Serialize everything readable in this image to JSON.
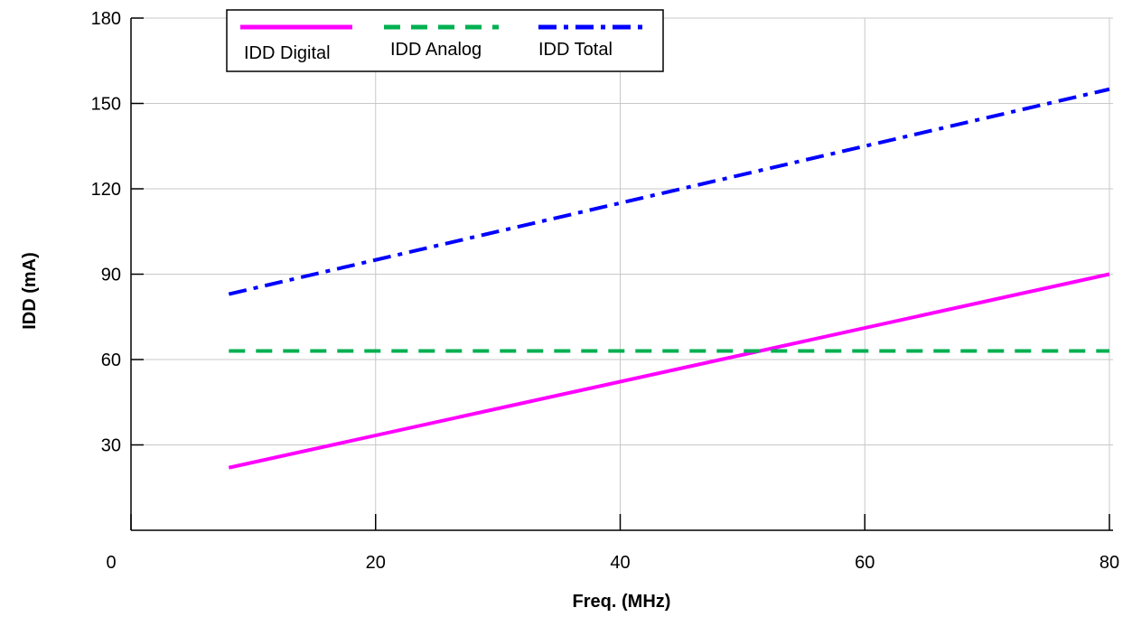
{
  "chart_data": {
    "type": "line",
    "xlabel": "Freq. (MHz)",
    "ylabel": "IDD (mA)",
    "xlim": [
      0,
      80
    ],
    "ylim": [
      0,
      180
    ],
    "xticks": [
      0,
      20,
      40,
      60,
      80
    ],
    "yticks": [
      30,
      60,
      90,
      120,
      150,
      180
    ],
    "grid": true,
    "legend_position": "top-left",
    "series": [
      {
        "name": "IDD Digital",
        "color": "#ff00ff",
        "style": "solid",
        "x": [
          8,
          80
        ],
        "y": [
          22,
          90
        ]
      },
      {
        "name": "IDD Analog",
        "color": "#00b050",
        "style": "dashed",
        "x": [
          8,
          80
        ],
        "y": [
          63,
          63
        ]
      },
      {
        "name": "IDD Total",
        "color": "#0000ff",
        "style": "dash-dot",
        "x": [
          8,
          80
        ],
        "y": [
          83,
          155
        ]
      }
    ]
  }
}
